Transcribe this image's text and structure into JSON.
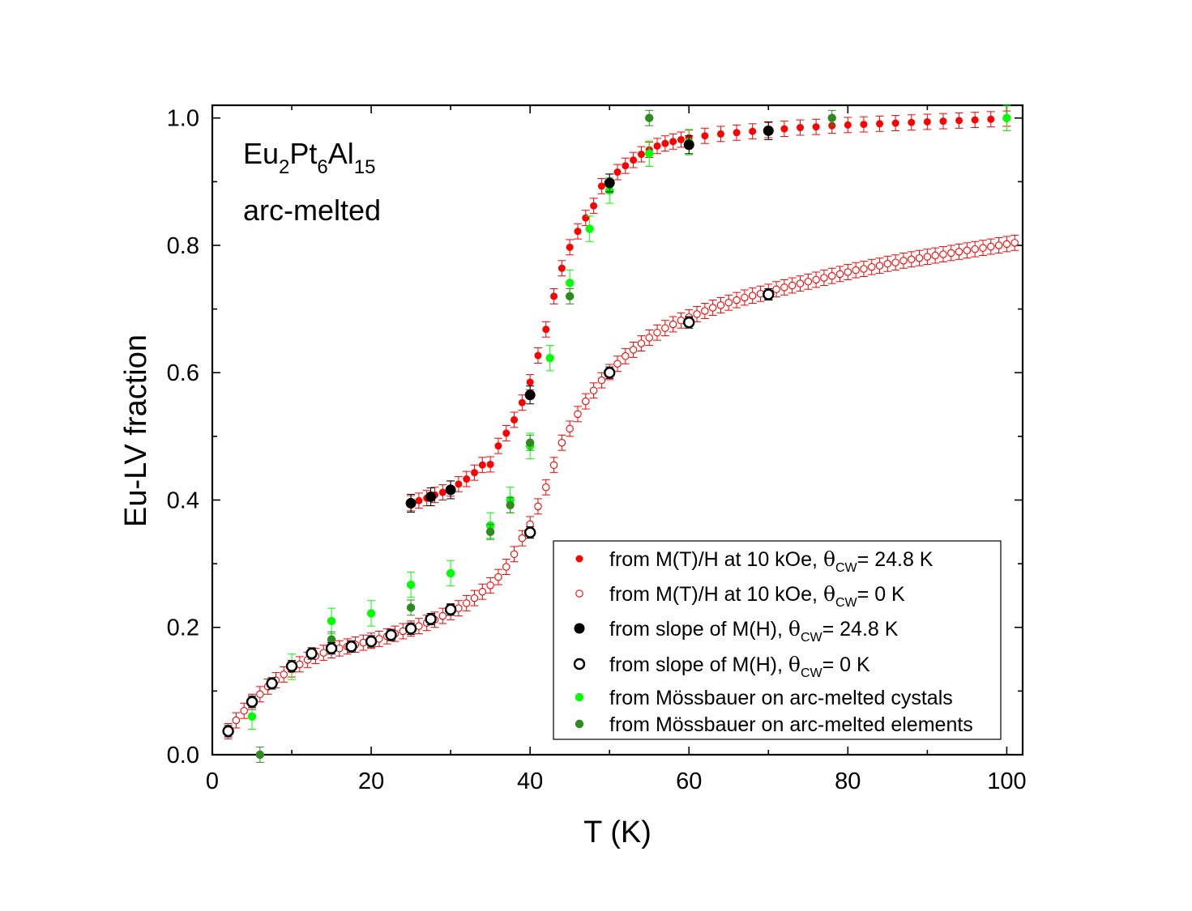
{
  "chart_data": {
    "type": "scatter",
    "xlabel": "T (K)",
    "ylabel": "Eu-LV fraction",
    "xlim": [
      0,
      102
    ],
    "ylim": [
      0,
      1.02
    ],
    "xticks": [
      "0",
      "20",
      "40",
      "60",
      "80",
      "100"
    ],
    "yticks": [
      "0.0",
      "0.2",
      "0.4",
      "0.6",
      "0.8",
      "1.0"
    ],
    "legend_position": "bottom-right",
    "annotations": {
      "compound_parts": [
        "Eu",
        "2",
        "Pt",
        "6",
        "Al",
        "15"
      ],
      "sample": "arc-melted"
    },
    "series": [
      {
        "legend": {
          "prefix": "from M(T)/H at 10 kOe, ",
          "theta": "θ",
          "sub": "CW",
          "suffix": "= 24.8 K"
        },
        "color": "#ff0000",
        "marker": "filled-small",
        "x": [
          25,
          26,
          27,
          28,
          29,
          30,
          31,
          32,
          33,
          34,
          35,
          36,
          37,
          38,
          39,
          40,
          41,
          42,
          43,
          44,
          45,
          46,
          47,
          48,
          49,
          50,
          51,
          52,
          53,
          54,
          55,
          56,
          57,
          58,
          59,
          60,
          62,
          64,
          66,
          68,
          70,
          72,
          74,
          76,
          78,
          80,
          82,
          84,
          86,
          88,
          90,
          92,
          94,
          96,
          98,
          100
        ],
        "y": [
          0.395,
          0.399,
          0.403,
          0.408,
          0.412,
          0.418,
          0.425,
          0.433,
          0.443,
          0.455,
          0.456,
          0.485,
          0.505,
          0.526,
          0.553,
          0.585,
          0.627,
          0.668,
          0.72,
          0.764,
          0.797,
          0.822,
          0.843,
          0.862,
          0.893,
          0.9,
          0.915,
          0.925,
          0.934,
          0.943,
          0.95,
          0.956,
          0.96,
          0.963,
          0.966,
          0.969,
          0.972,
          0.975,
          0.977,
          0.979,
          0.981,
          0.983,
          0.985,
          0.986,
          0.988,
          0.989,
          0.99,
          0.991,
          0.992,
          0.993,
          0.994,
          0.995,
          0.996,
          0.997,
          0.998,
          0.999
        ],
        "yerr": 0.012
      },
      {
        "legend": {
          "prefix": "from M(T)/H at 10 kOe, ",
          "theta": "θ",
          "sub": "CW",
          "suffix": "= 0 K"
        },
        "color": "#ff0000",
        "marker": "open-small",
        "x": [
          2,
          3,
          4,
          5,
          6,
          7,
          8,
          9,
          10,
          11,
          12,
          13,
          14,
          15,
          16,
          17,
          18,
          19,
          20,
          21,
          22,
          23,
          24,
          25,
          26,
          27,
          28,
          29,
          30,
          31,
          32,
          33,
          34,
          35,
          36,
          37,
          38,
          39,
          40,
          41,
          42,
          43,
          44,
          45,
          46,
          47,
          48,
          49,
          50,
          51,
          52,
          53,
          54,
          55,
          56,
          57,
          58,
          59,
          60,
          61,
          62,
          63,
          64,
          65,
          66,
          67,
          68,
          69,
          70,
          71,
          72,
          73,
          74,
          75,
          76,
          77,
          78,
          79,
          80,
          81,
          82,
          83,
          84,
          85,
          86,
          87,
          88,
          89,
          90,
          91,
          92,
          93,
          94,
          95,
          96,
          97,
          98,
          99,
          100,
          101
        ],
        "y": [
          0.037,
          0.054,
          0.069,
          0.083,
          0.095,
          0.107,
          0.117,
          0.126,
          0.134,
          0.142,
          0.149,
          0.155,
          0.16,
          0.164,
          0.167,
          0.17,
          0.173,
          0.176,
          0.179,
          0.182,
          0.186,
          0.19,
          0.194,
          0.198,
          0.202,
          0.207,
          0.212,
          0.218,
          0.224,
          0.23,
          0.238,
          0.246,
          0.256,
          0.266,
          0.279,
          0.295,
          0.315,
          0.34,
          0.362,
          0.39,
          0.42,
          0.455,
          0.49,
          0.512,
          0.535,
          0.555,
          0.572,
          0.588,
          0.601,
          0.614,
          0.626,
          0.636,
          0.646,
          0.655,
          0.663,
          0.67,
          0.676,
          0.682,
          0.687,
          0.692,
          0.697,
          0.702,
          0.706,
          0.71,
          0.714,
          0.718,
          0.721,
          0.724,
          0.727,
          0.731,
          0.734,
          0.737,
          0.74,
          0.743,
          0.746,
          0.749,
          0.752,
          0.755,
          0.758,
          0.761,
          0.763,
          0.766,
          0.768,
          0.771,
          0.773,
          0.776,
          0.778,
          0.78,
          0.782,
          0.784,
          0.786,
          0.788,
          0.79,
          0.792,
          0.794,
          0.796,
          0.798,
          0.8,
          0.802,
          0.804
        ],
        "yerr": 0.012
      },
      {
        "legend": {
          "prefix": "from slope of M(H), ",
          "theta": "θ",
          "sub": "CW",
          "suffix": "= 24.8 K"
        },
        "color": "#000000",
        "marker": "filled-large",
        "x": [
          25,
          27.5,
          30,
          40,
          50,
          60,
          70
        ],
        "y": [
          0.395,
          0.405,
          0.416,
          0.565,
          0.898,
          0.958,
          0.98
        ],
        "yerr": 0.014
      },
      {
        "legend": {
          "prefix": "from slope of M(H), ",
          "theta": "θ",
          "sub": "CW",
          "suffix": "= 0 K"
        },
        "color": "#000000",
        "marker": "open-large",
        "x": [
          2,
          5,
          7.5,
          10,
          12.5,
          15,
          17.5,
          20,
          22.5,
          25,
          27.5,
          30,
          40,
          50,
          60,
          70
        ],
        "y": [
          0.037,
          0.083,
          0.112,
          0.139,
          0.159,
          0.167,
          0.17,
          0.178,
          0.188,
          0.198,
          0.213,
          0.228,
          0.349,
          0.6,
          0.679,
          0.723
        ],
        "yerr": 0.009
      },
      {
        "legend": {
          "prefix": "from Mössbauer on arc-melted cystals",
          "theta": "",
          "sub": "",
          "suffix": ""
        },
        "color": "#00ff00",
        "marker": "filled-medium",
        "x": [
          5,
          10,
          15,
          20,
          25,
          30,
          35,
          37.5,
          40,
          42.5,
          45,
          47.5,
          50,
          55,
          60,
          100
        ],
        "y": [
          0.06,
          0.138,
          0.21,
          0.222,
          0.267,
          0.285,
          0.36,
          0.4,
          0.485,
          0.623,
          0.741,
          0.826,
          0.886,
          0.944,
          0.962,
          1.0
        ],
        "yerr": 0.02
      },
      {
        "legend": {
          "prefix": "from Mössbauer on arc-melted elements",
          "theta": "",
          "sub": "",
          "suffix": ""
        },
        "color": "#2e8b1f",
        "marker": "filled-medium",
        "x": [
          6,
          15,
          25,
          35,
          37.5,
          40,
          45,
          55,
          78
        ],
        "y": [
          0.0,
          0.181,
          0.231,
          0.35,
          0.392,
          0.49,
          0.72,
          1.0,
          1.0
        ],
        "yerr": 0.012
      }
    ]
  }
}
